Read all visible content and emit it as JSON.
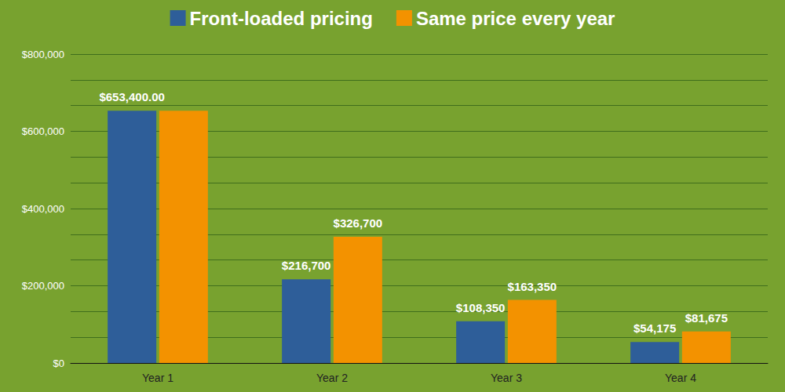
{
  "chart_data": {
    "type": "bar",
    "categories": [
      "Year 1",
      "Year 2",
      "Year 3",
      "Year 4"
    ],
    "series": [
      {
        "name": "Front-loaded pricing",
        "color": "#2e5e99",
        "values": [
          653400,
          216700,
          108350,
          54175
        ],
        "value_labels": [
          "$653,400.00",
          "$216,700",
          "$108,350",
          "$54,175"
        ]
      },
      {
        "name": "Same price every year",
        "color": "#f39200",
        "values": [
          653400,
          326700,
          163350,
          81675
        ],
        "value_labels": [
          null,
          "$326,700",
          "$163,350",
          "$81,675"
        ]
      }
    ],
    "ylim": [
      0,
      800000
    ],
    "yticks": [
      {
        "value": 0,
        "label": "$0"
      },
      {
        "value": 200000,
        "label": "$200,000"
      },
      {
        "value": 400000,
        "label": "$400,000"
      },
      {
        "value": 600000,
        "label": "$600,000"
      },
      {
        "value": 800000,
        "label": "$800,000"
      }
    ],
    "grid": true,
    "legend": "top",
    "data_labels": true
  }
}
